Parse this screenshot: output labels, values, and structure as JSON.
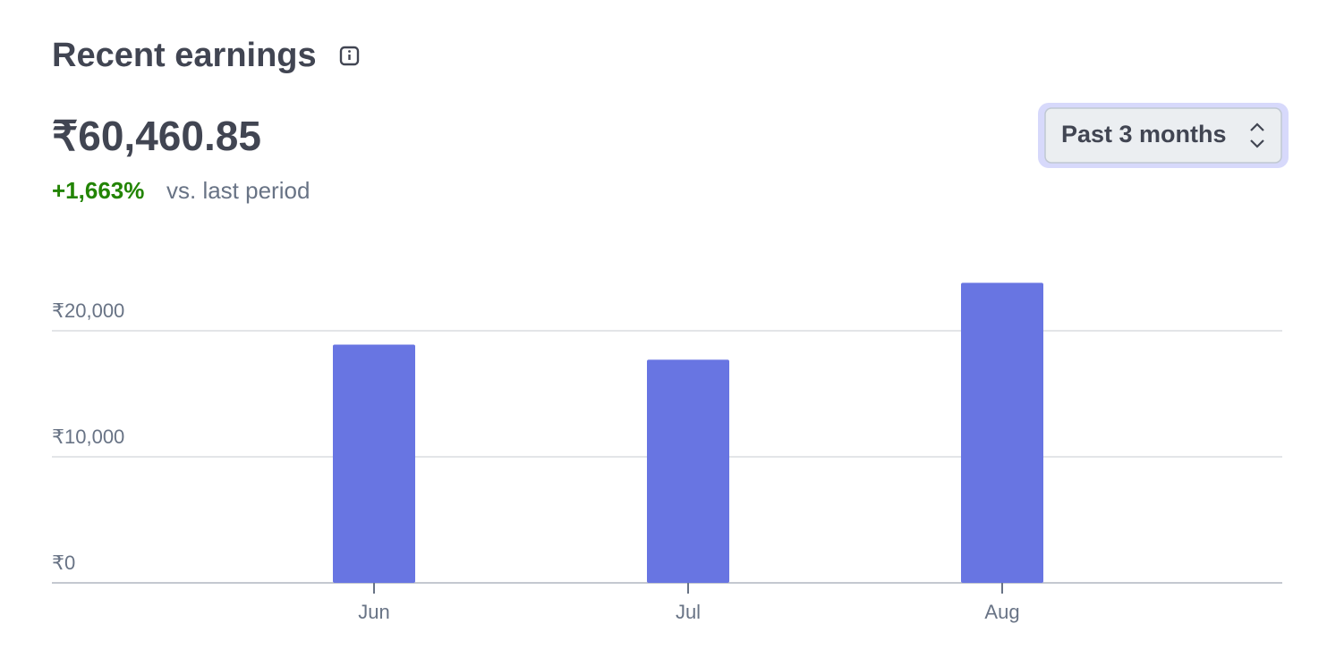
{
  "header": {
    "title": "Recent earnings",
    "amount": "₹60,460.85",
    "change": "+1,663%",
    "change_note": "vs. last period",
    "period_select": "Past 3 months"
  },
  "chart_data": {
    "type": "bar",
    "categories": [
      "Jun",
      "Jul",
      "Aug"
    ],
    "values": [
      18900,
      17700,
      23800
    ],
    "color": "#6875e2",
    "ylim": [
      0,
      25000
    ],
    "yticks": [
      {
        "value": 0,
        "label": "₹0"
      },
      {
        "value": 10000,
        "label": "₹10,000"
      },
      {
        "value": 20000,
        "label": "₹20,000"
      }
    ],
    "grid": true
  }
}
